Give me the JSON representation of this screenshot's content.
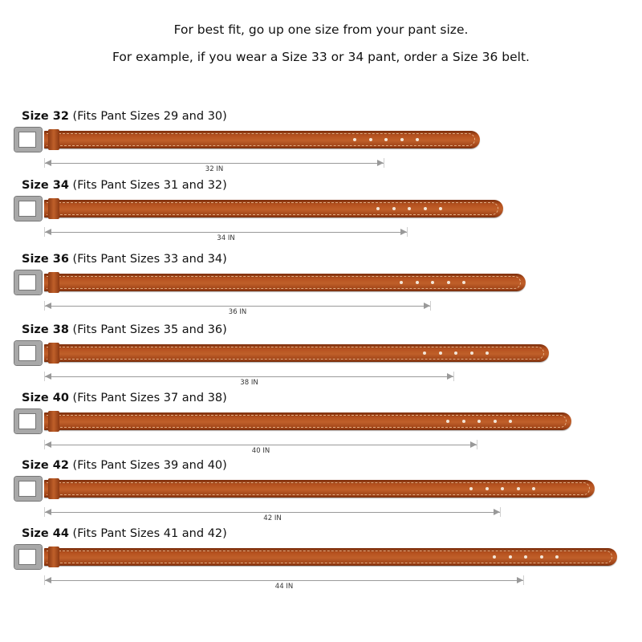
{
  "intro": {
    "line1": "For best fit, go up one size from your pant size.",
    "line2": "For example, if you wear a Size 33 or 34 pant, order a Size 36 belt."
  },
  "colors": {
    "leather": "#b4501e",
    "buckle": "#a8a8a8",
    "measure_line": "#9a9a9a"
  },
  "belts": [
    {
      "size": "Size 32",
      "fits": "(Fits Pant Sizes 29 and 30)",
      "measure": "32 IN"
    },
    {
      "size": "Size 34",
      "fits": "(Fits Pant Sizes 31 and 32)",
      "measure": "34 IN"
    },
    {
      "size": "Size 36",
      "fits": "(Fits Pant Sizes 33 and 34)",
      "measure": "36 IN"
    },
    {
      "size": "Size 38",
      "fits": "(Fits Pant Sizes 35 and 36)",
      "measure": "38 IN"
    },
    {
      "size": "Size 40",
      "fits": "(Fits Pant Sizes 37 and 38)",
      "measure": "40 IN"
    },
    {
      "size": "Size 42",
      "fits": "(Fits Pant Sizes 39 and 40)",
      "measure": "42 IN"
    },
    {
      "size": "Size 44",
      "fits": "(Fits Pant Sizes 41 and 42)",
      "measure": "44 IN"
    }
  ]
}
